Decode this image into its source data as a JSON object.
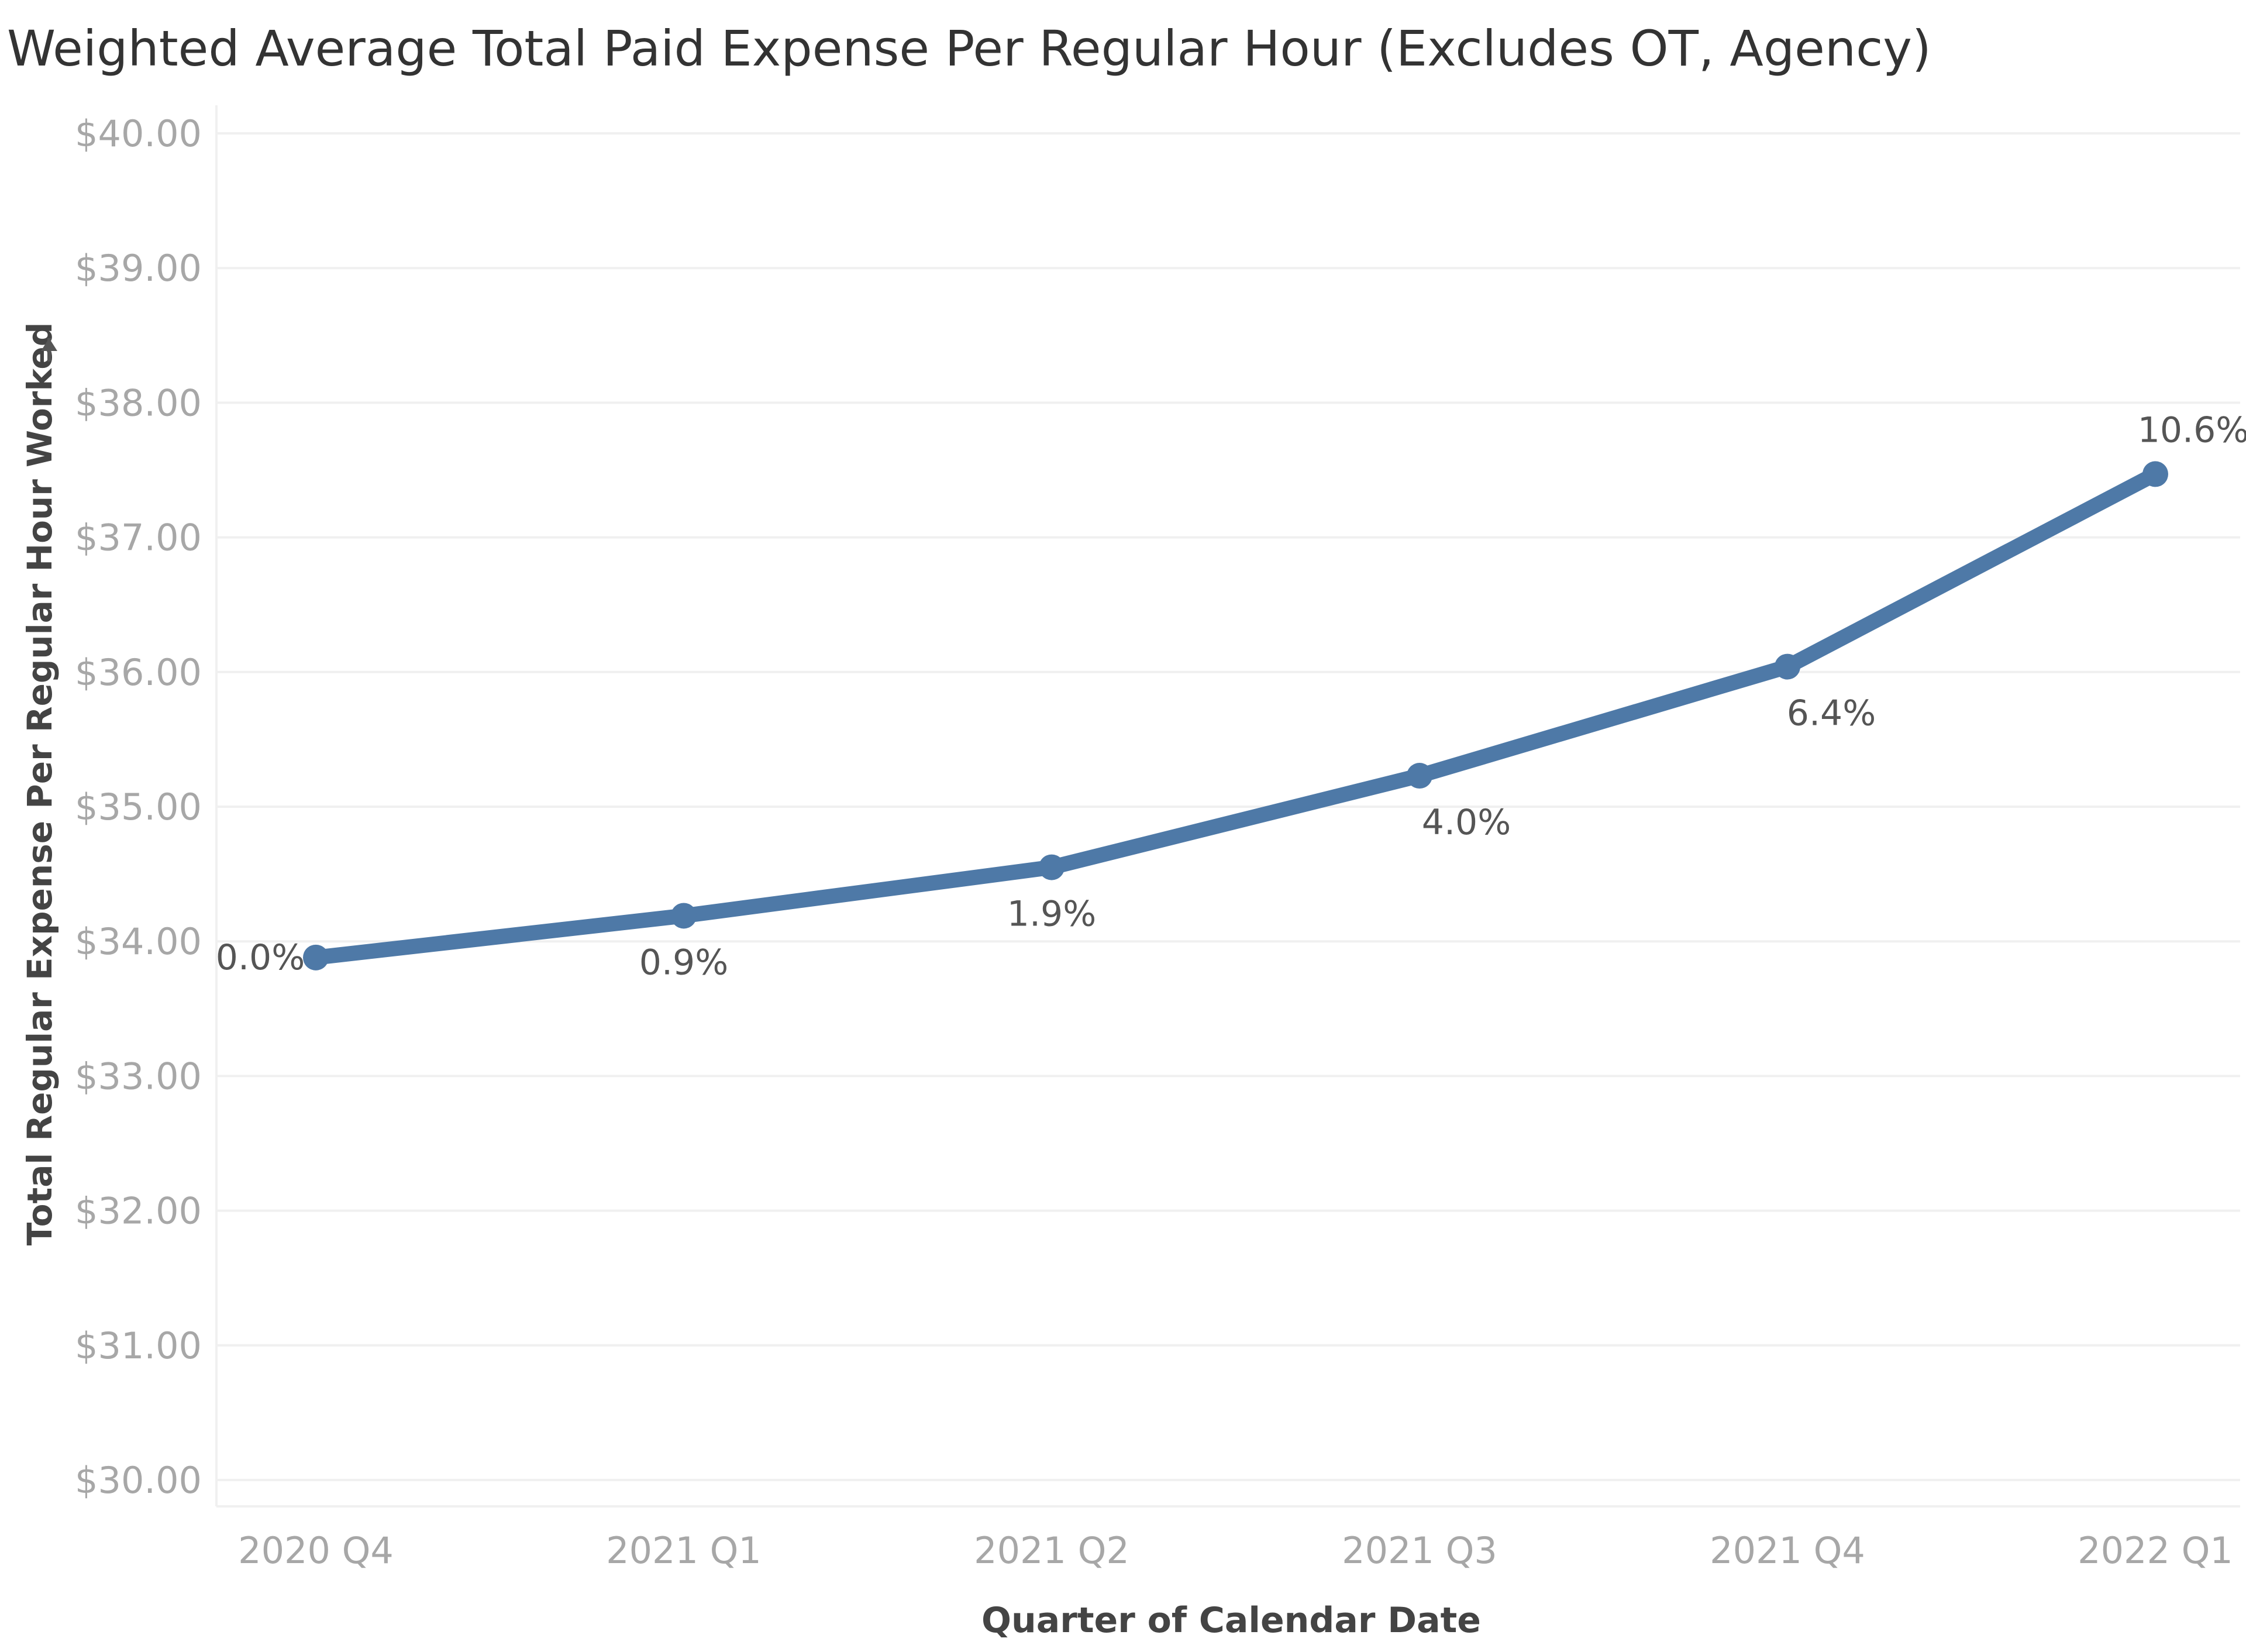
{
  "colors": {
    "line": "#4e79a7",
    "grid": "#f0f0f0",
    "axis_tick": "#a7a7a7",
    "title": "#333333",
    "data_label": "#555555"
  },
  "chart_data": {
    "type": "line",
    "title": "Weighted Average Total Paid Expense Per Regular Hour (Excludes OT, Agency)",
    "xlabel": "Quarter of Calendar Date",
    "ylabel": "Total Regular Expense Per Regular Hour Worked",
    "ylim": [
      30,
      40
    ],
    "grid": true,
    "legend": "none",
    "categories": [
      "2020 Q4",
      "2021 Q1",
      "2021 Q2",
      "2021 Q3",
      "2021 Q4",
      "2022 Q1"
    ],
    "y_ticks": [
      {
        "value": 40,
        "label": "$40.00"
      },
      {
        "value": 39,
        "label": "$39.00"
      },
      {
        "value": 38,
        "label": "$38.00"
      },
      {
        "value": 37,
        "label": "$37.00"
      },
      {
        "value": 36,
        "label": "$36.00"
      },
      {
        "value": 35,
        "label": "$35.00"
      },
      {
        "value": 34,
        "label": "$34.00"
      },
      {
        "value": 33,
        "label": "$33.00"
      },
      {
        "value": 32,
        "label": "$32.00"
      },
      {
        "value": 31,
        "label": "$31.00"
      },
      {
        "value": 30,
        "label": "$30.00"
      }
    ],
    "series": [
      {
        "values": [
          33.88,
          34.19,
          34.55,
          35.23,
          36.04,
          37.47
        ],
        "labels": [
          "0.0%",
          "0.9%",
          "1.9%",
          "4.0%",
          "6.4%",
          "10.6%"
        ]
      }
    ]
  }
}
